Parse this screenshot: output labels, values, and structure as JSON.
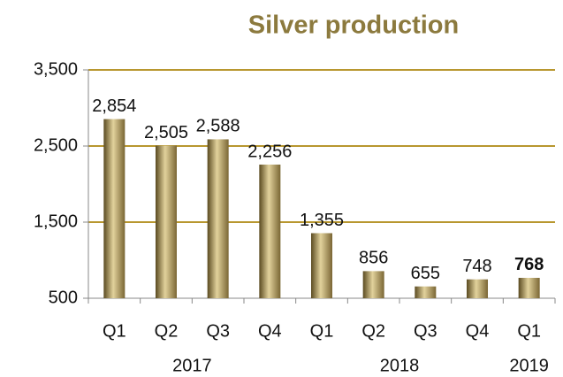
{
  "chart_data": {
    "type": "bar",
    "title": "Silver production",
    "categories": [
      "Q1",
      "Q2",
      "Q3",
      "Q4",
      "Q1",
      "Q2",
      "Q3",
      "Q4",
      "Q1"
    ],
    "groups": [
      {
        "label": "2017",
        "span": 4
      },
      {
        "label": "2018",
        "span": 4
      },
      {
        "label": "2019",
        "span": 1
      }
    ],
    "values": [
      2854,
      2505,
      2588,
      2256,
      1355,
      856,
      655,
      748,
      768
    ],
    "value_labels": [
      "2,854",
      "2,505",
      "2,588",
      "2,256",
      "1,355",
      "856",
      "655",
      "748",
      "768"
    ],
    "highlight_index": 8,
    "gradient": [
      "#5a4a20",
      "#e2d29c",
      "#7a6634"
    ],
    "grid_color": "#b8972f",
    "ylim": [
      500,
      3500
    ],
    "yticks": [
      500,
      {
        "value": 1500,
        "label": "1,500"
      },
      {
        "value": 2500,
        "label": "2,500"
      },
      {
        "value": 3500,
        "label": "3,500"
      }
    ],
    "grid": true
  }
}
